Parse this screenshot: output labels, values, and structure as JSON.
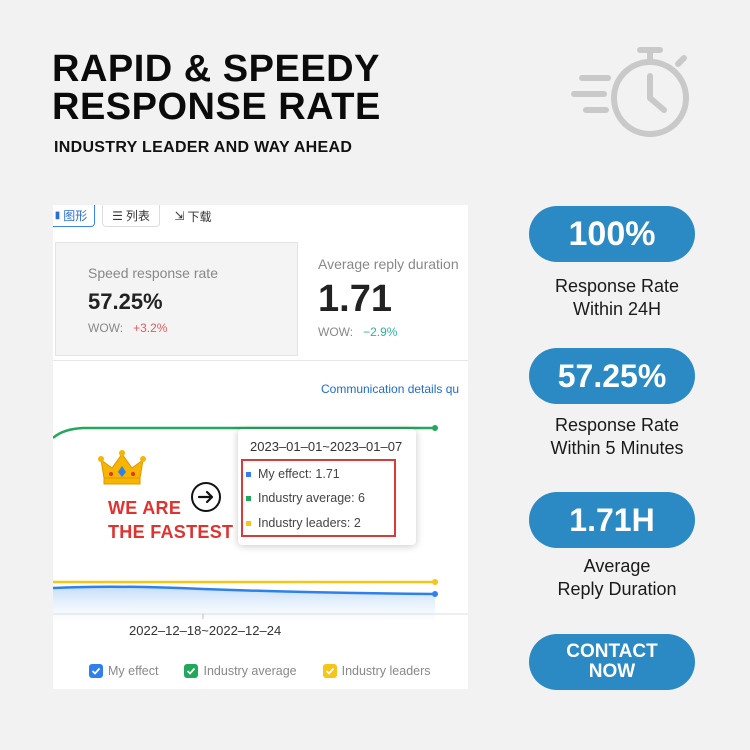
{
  "headline": {
    "line1": "RAPID & SPEEDY",
    "line2": "RESPONSE RATE",
    "subtitle": "INDUSTRY LEADER AND WAY AHEAD"
  },
  "decor": {
    "stopwatch_icon": "stopwatch-icon"
  },
  "screenshot": {
    "tabs": [
      {
        "label": "图形",
        "icon": "bar-chart-icon",
        "active": true
      },
      {
        "label": "列表",
        "icon": "list-icon"
      },
      {
        "label": "下载",
        "icon": "download-icon"
      }
    ],
    "cards": [
      {
        "label": "Speed response rate",
        "value": "57.25%",
        "wow_label": "WOW:",
        "wow_value": "+3.2%"
      },
      {
        "label": "Average reply duration",
        "value": "1.71",
        "wow_label": "WOW:",
        "wow_value": "−2.9%"
      }
    ],
    "link": "Communication details qu",
    "tooltip": {
      "date": "2023–01–01~2023–01–07",
      "rows": [
        {
          "text": "My effect: 1.71",
          "color": "#2f80ed"
        },
        {
          "text": "Industry average: 6",
          "color": "#22a85a"
        },
        {
          "text": "Industry leaders: 2",
          "color": "#f5c518"
        }
      ]
    },
    "callout": {
      "line1": "WE ARE",
      "line2": "THE FASTEST",
      "crown_icon": "crown-icon",
      "arrow_icon": "arrow-right-circle-icon"
    },
    "x_range_label": "2022–12–18~2022–12–24",
    "legend": [
      {
        "label": "My effect",
        "color": "#2f80ed"
      },
      {
        "label": "Industry average",
        "color": "#22a85a"
      },
      {
        "label": "Industry leaders",
        "color": "#f5c518"
      }
    ],
    "colors": {
      "my_effect": "#2f80ed",
      "industry_average": "#22a85a",
      "industry_leaders": "#f5c518",
      "highlight": "#d93a3a",
      "fastest_text": "#e0322e"
    }
  },
  "stats": [
    {
      "value": "100%",
      "desc_line1": "Response Rate",
      "desc_line2": "Within 24H"
    },
    {
      "value": "57.25%",
      "desc_line1": "Response Rate",
      "desc_line2": "Within 5 Minutes"
    },
    {
      "value": "1.71H",
      "desc_line1": "Average",
      "desc_line2": "Reply Duration"
    }
  ],
  "cta": {
    "line1": "CONTACT",
    "line2": "NOW"
  },
  "accent_color": "#2b8ac4"
}
